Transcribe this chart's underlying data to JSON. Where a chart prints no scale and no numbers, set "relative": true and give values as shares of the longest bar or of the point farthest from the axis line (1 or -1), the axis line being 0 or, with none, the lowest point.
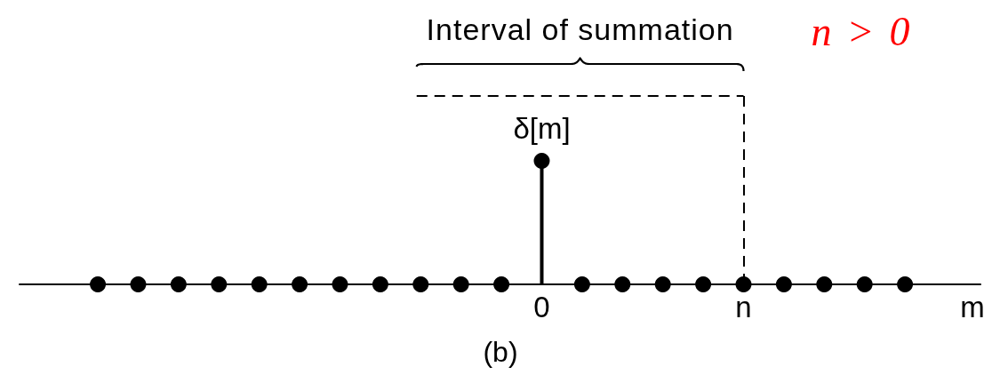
{
  "chart_data": {
    "type": "lollipop",
    "relative": true,
    "categories": [
      null,
      null,
      null,
      null,
      null,
      null,
      null,
      null,
      null,
      null,
      null,
      "0",
      null,
      null,
      null,
      null,
      "n",
      null,
      null,
      null,
      null
    ],
    "series": [
      {
        "name": "δ[m]",
        "color": "#000000",
        "values": [
          0,
          0,
          0,
          0,
          0,
          0,
          0,
          0,
          0,
          0,
          0,
          1,
          0,
          0,
          0,
          0,
          0,
          0,
          0,
          0,
          0
        ]
      }
    ],
    "xlabel": "m",
    "marker": "circle",
    "ref_lines": [
      {
        "axis": "x",
        "value": "n",
        "line_style": "dashed"
      }
    ],
    "annotations": [
      "Interval of summation",
      "n > 0",
      "(b)"
    ]
  }
}
